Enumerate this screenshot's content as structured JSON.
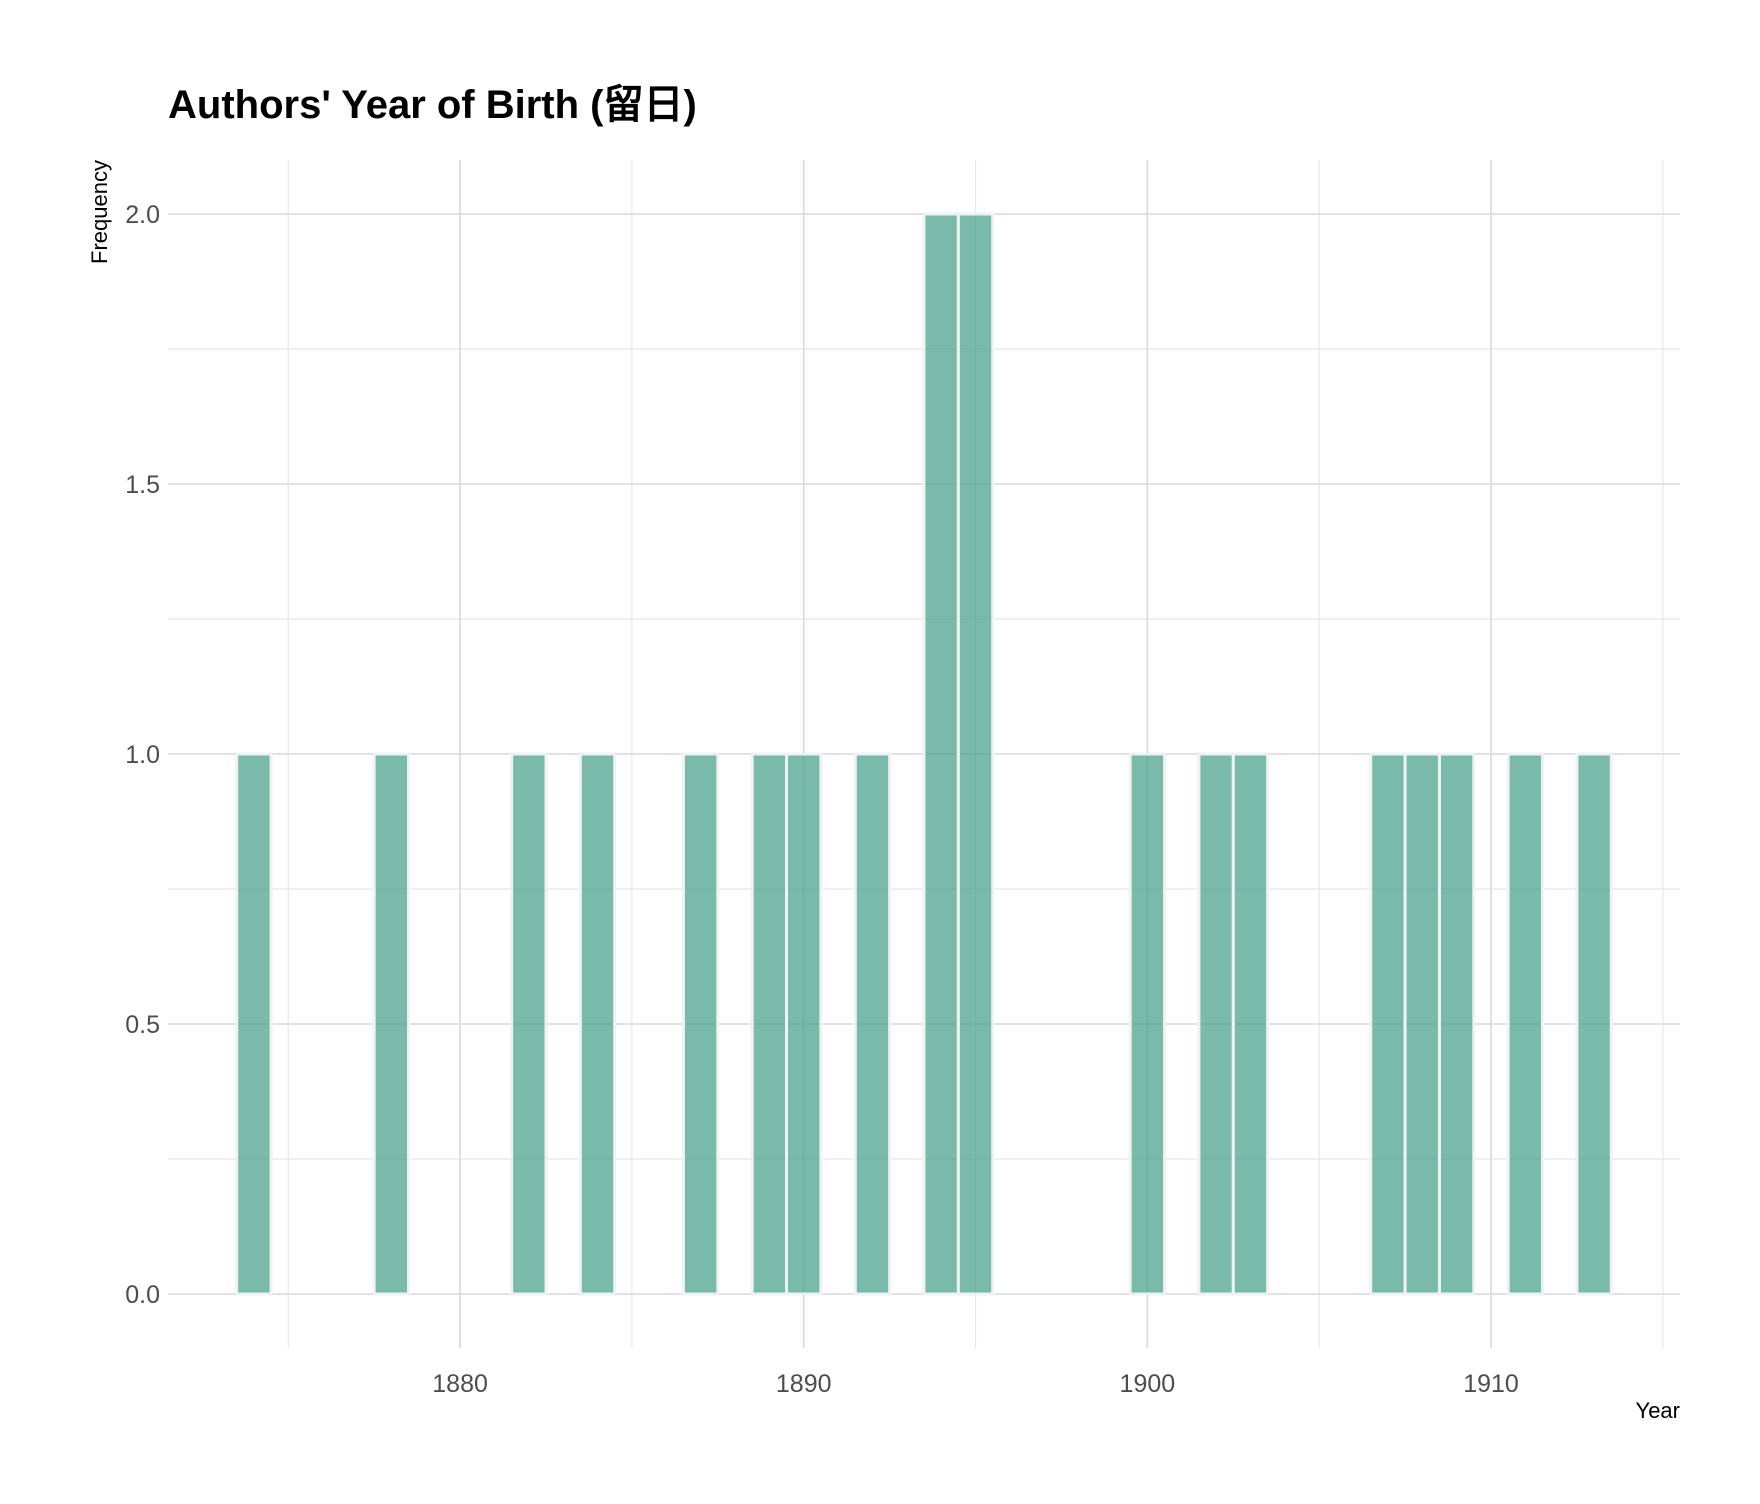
{
  "chart_data": {
    "type": "bar",
    "title": "Authors' Year of Birth (留日)",
    "xlabel": "Year",
    "ylabel": "Frequency",
    "bin_width": 1,
    "x": [
      1874,
      1878,
      1882,
      1884,
      1887,
      1889,
      1890,
      1892,
      1894,
      1895,
      1900,
      1902,
      1903,
      1907,
      1908,
      1909,
      1911,
      1913
    ],
    "values": [
      1,
      1,
      1,
      1,
      1,
      1,
      1,
      1,
      2,
      2,
      1,
      1,
      1,
      1,
      1,
      1,
      1,
      1
    ],
    "xlim": [
      1871.5,
      1915.5
    ],
    "ylim": [
      -0.1,
      2.1
    ],
    "x_major_ticks": [
      1880,
      1890,
      1900,
      1910
    ],
    "x_minor_ticks": [
      1875,
      1885,
      1895,
      1905,
      1915
    ],
    "y_major_ticks": [
      0.0,
      0.5,
      1.0,
      1.5,
      2.0
    ],
    "y_minor_ticks": [
      0.25,
      0.75,
      1.25,
      1.75
    ],
    "y_tick_labels": [
      "0.0",
      "0.5",
      "1.0",
      "1.5",
      "2.0"
    ],
    "x_tick_labels": [
      "1880",
      "1890",
      "1900",
      "1910"
    ],
    "grid": true,
    "bar_color": "#45a089"
  }
}
